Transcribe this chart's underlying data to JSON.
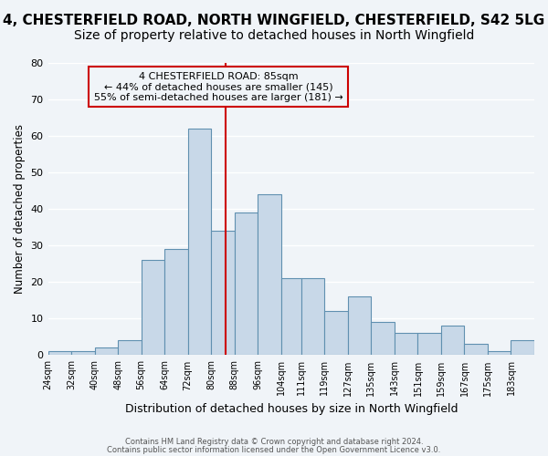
{
  "title1": "4, CHESTERFIELD ROAD, NORTH WINGFIELD, CHESTERFIELD, S42 5LG",
  "title2": "Size of property relative to detached houses in North Wingfield",
  "xlabel": "Distribution of detached houses by size in North Wingfield",
  "ylabel": "Number of detached properties",
  "footer1": "Contains HM Land Registry data © Crown copyright and database right 2024.",
  "footer2": "Contains public sector information licensed under the Open Government Licence v3.0.",
  "bar_values": [
    1,
    1,
    2,
    4,
    26,
    29,
    62,
    34,
    39,
    44,
    21,
    21,
    12,
    16,
    9,
    6,
    6,
    8,
    3,
    1,
    4
  ],
  "bin_labels": [
    "24sqm",
    "32sqm",
    "40sqm",
    "48sqm",
    "56sqm",
    "64sqm",
    "72sqm",
    "80sqm",
    "88sqm",
    "96sqm",
    "104sqm",
    "111sqm",
    "119sqm",
    "127sqm",
    "135sqm",
    "143sqm",
    "151sqm",
    "159sqm",
    "167sqm",
    "175sqm",
    "183sqm"
  ],
  "bin_edges": [
    24,
    32,
    40,
    48,
    56,
    64,
    72,
    80,
    88,
    96,
    104,
    111,
    119,
    127,
    135,
    143,
    151,
    159,
    167,
    175,
    183,
    191
  ],
  "bar_color": "#c8d8e8",
  "bar_edge_color": "#6090b0",
  "vline_x": 85,
  "vline_color": "#cc0000",
  "annotation_title": "4 CHESTERFIELD ROAD: 85sqm",
  "annotation_line1": "← 44% of detached houses are smaller (145)",
  "annotation_line2": "55% of semi-detached houses are larger (181) →",
  "annotation_box_color": "#cc0000",
  "ylim": [
    0,
    80
  ],
  "yticks": [
    0,
    10,
    20,
    30,
    40,
    50,
    60,
    70,
    80
  ],
  "bg_color": "#f0f4f8",
  "grid_color": "#ffffff",
  "title1_fontsize": 11,
  "title2_fontsize": 10
}
